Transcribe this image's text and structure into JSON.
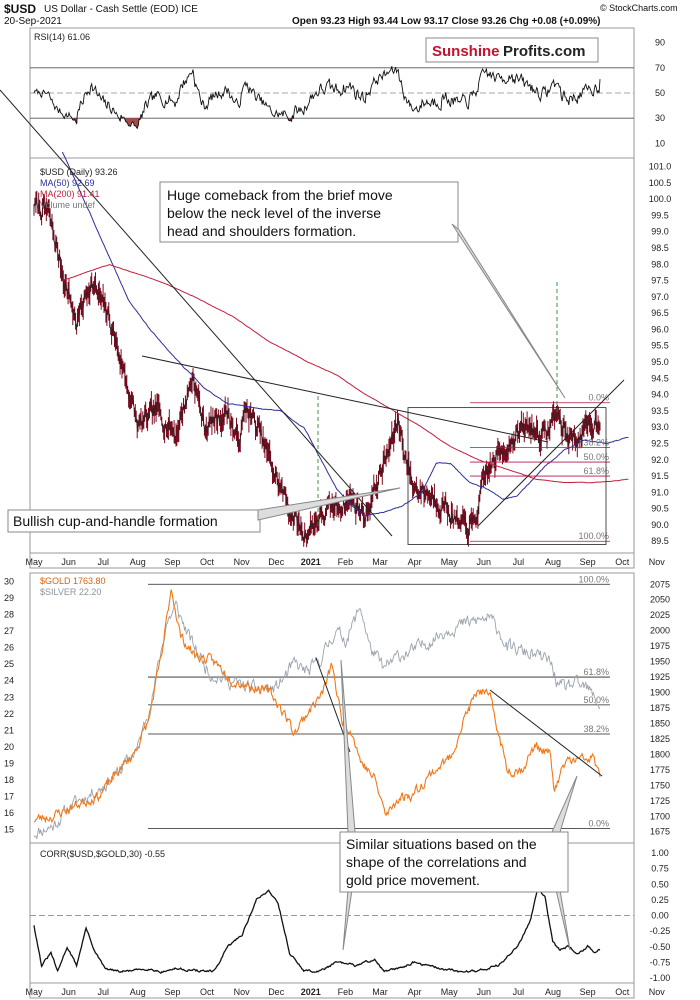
{
  "header": {
    "symbol": "$USD",
    "name": "US Dollar - Cash Settle (EOD) ICE",
    "date": "20-Sep-2021",
    "ohlc": "Open 93.23  High 93.44  Low 93.17  Close 93.26  Chg +0.08 (+0.09%)",
    "source": "© StockCharts.com",
    "brand_a": "Sunshine",
    "brand_b": "Profits.com"
  },
  "colors": {
    "usd": "#7a0c20",
    "ma50": "#2b2f9a",
    "ma200": "#c21d3c",
    "gold": "#f07818",
    "silver": "#9aa3ad",
    "fib": "#b0154a",
    "rsi_fill": "#a64b4b",
    "brand_red": "#c8102e"
  },
  "chart_data": [
    {
      "type": "line",
      "title": "RSI(14) 61.06",
      "ylim": [
        0,
        100
      ],
      "yticks": [
        "90",
        "70",
        "50",
        "30",
        "10"
      ],
      "levels": [
        70,
        50,
        30
      ],
      "last_value": 61.06
    },
    {
      "type": "line",
      "title": "$USD (Daily) 93.26",
      "legend": [
        "$USD (Daily) 93.26",
        "MA(50) 92.69",
        "MA(200) 91.41",
        "Volume undef"
      ],
      "ylim": [
        89.2,
        101.2
      ],
      "yticks": [
        "101.0",
        "100.5",
        "100.0",
        "99.5",
        "99.0",
        "98.5",
        "98.0",
        "97.5",
        "97.0",
        "96.5",
        "96.0",
        "95.5",
        "95.0",
        "94.5",
        "94.0",
        "93.5",
        "93.0",
        "92.5",
        "92.0",
        "91.5",
        "91.0",
        "90.5",
        "90.0",
        "89.5"
      ],
      "anchors": [
        [
          0,
          99.8
        ],
        [
          15,
          99.6
        ],
        [
          28,
          98.0
        ],
        [
          45,
          96.2
        ],
        [
          60,
          97.5
        ],
        [
          80,
          96.3
        ],
        [
          95,
          94.7
        ],
        [
          110,
          93.0
        ],
        [
          130,
          93.5
        ],
        [
          150,
          92.8
        ],
        [
          168,
          94.6
        ],
        [
          180,
          93.0
        ],
        [
          205,
          93.5
        ],
        [
          215,
          92.5
        ],
        [
          225,
          93.6
        ],
        [
          240,
          92.7
        ],
        [
          255,
          91.5
        ],
        [
          270,
          90.5
        ],
        [
          285,
          89.7
        ],
        [
          300,
          90.2
        ],
        [
          315,
          90.5
        ],
        [
          335,
          90.8
        ],
        [
          350,
          90.3
        ],
        [
          375,
          92.3
        ],
        [
          385,
          93.2
        ],
        [
          392,
          92.2
        ],
        [
          400,
          91.2
        ],
        [
          415,
          91.0
        ],
        [
          435,
          90.6
        ],
        [
          450,
          89.9
        ],
        [
          465,
          90.0
        ],
        [
          478,
          91.6
        ],
        [
          495,
          92.3
        ],
        [
          510,
          92.8
        ],
        [
          525,
          93.0
        ],
        [
          540,
          92.7
        ],
        [
          552,
          93.5
        ],
        [
          558,
          93.0
        ],
        [
          565,
          92.7
        ],
        [
          578,
          92.7
        ],
        [
          590,
          93.1
        ],
        [
          598,
          93.3
        ]
      ],
      "ma50": [
        [
          30,
          99.5
        ],
        [
          50,
          98.2
        ],
        [
          70,
          96.9
        ],
        [
          90,
          96.1
        ],
        [
          110,
          95.4
        ],
        [
          130,
          94.8
        ],
        [
          150,
          94.2
        ],
        [
          175,
          93.7
        ],
        [
          200,
          93.6
        ],
        [
          230,
          93.5
        ],
        [
          255,
          93.0
        ],
        [
          275,
          91.9
        ],
        [
          290,
          91.1
        ],
        [
          305,
          90.6
        ],
        [
          320,
          90.3
        ],
        [
          340,
          90.4
        ],
        [
          360,
          90.6
        ],
        [
          380,
          91.0
        ],
        [
          395,
          91.9
        ],
        [
          410,
          91.9
        ],
        [
          430,
          91.3
        ],
        [
          450,
          91.1
        ],
        [
          465,
          90.8
        ],
        [
          480,
          90.9
        ],
        [
          495,
          91.3
        ],
        [
          510,
          91.8
        ],
        [
          530,
          92.3
        ],
        [
          550,
          92.6
        ],
        [
          575,
          92.5
        ],
        [
          598,
          92.7
        ]
      ],
      "ma200": [
        [
          30,
          97.8
        ],
        [
          50,
          98.0
        ],
        [
          80,
          97.7
        ],
        [
          110,
          97.4
        ],
        [
          140,
          97.0
        ],
        [
          180,
          96.4
        ],
        [
          220,
          95.6
        ],
        [
          260,
          95.0
        ],
        [
          290,
          94.6
        ],
        [
          320,
          94.0
        ],
        [
          350,
          93.5
        ],
        [
          380,
          93.0
        ],
        [
          410,
          92.4
        ],
        [
          440,
          92.0
        ],
        [
          470,
          91.7
        ],
        [
          500,
          91.4
        ],
        [
          530,
          91.3
        ],
        [
          560,
          91.3
        ],
        [
          598,
          91.4
        ]
      ],
      "fib_levels": [
        {
          "label": "0.0%",
          "value": 93.75
        },
        {
          "label": "38.2%",
          "value": 92.38
        },
        {
          "label": "50.0%",
          "value": 91.93
        },
        {
          "label": "61.8%",
          "value": 91.5
        },
        {
          "label": "100.0%",
          "value": 89.5
        }
      ]
    },
    {
      "type": "line",
      "title": "$GOLD 1763.80",
      "legend": [
        "$GOLD 1763.80",
        "$SILVER 22.20"
      ],
      "ylim_gold": [
        1660,
        2090
      ],
      "ylim_silver": [
        14.3,
        30.4
      ],
      "yticks_left": [
        "30",
        "29",
        "28",
        "27",
        "26",
        "25",
        "24",
        "23",
        "22",
        "21",
        "20",
        "19",
        "18",
        "17",
        "16",
        "15"
      ],
      "yticks_right": [
        "2075",
        "2050",
        "2025",
        "2000",
        "1975",
        "1950",
        "1925",
        "1900",
        "1875",
        "1850",
        "1825",
        "1800",
        "1775",
        "1750",
        "1725",
        "1700",
        "1675"
      ],
      "gold_anchors": [
        [
          0,
          1695
        ],
        [
          20,
          1700
        ],
        [
          40,
          1715
        ],
        [
          70,
          1735
        ],
        [
          90,
          1775
        ],
        [
          105,
          1800
        ],
        [
          120,
          1850
        ],
        [
          135,
          1960
        ],
        [
          145,
          2070
        ],
        [
          155,
          1990
        ],
        [
          170,
          1960
        ],
        [
          190,
          1950
        ],
        [
          210,
          1920
        ],
        [
          230,
          1910
        ],
        [
          250,
          1900
        ],
        [
          265,
          1865
        ],
        [
          275,
          1835
        ],
        [
          290,
          1870
        ],
        [
          305,
          1900
        ],
        [
          315,
          1945
        ],
        [
          325,
          1855
        ],
        [
          335,
          1840
        ],
        [
          345,
          1790
        ],
        [
          360,
          1760
        ],
        [
          372,
          1700
        ],
        [
          385,
          1730
        ],
        [
          400,
          1735
        ],
        [
          420,
          1770
        ],
        [
          440,
          1795
        ],
        [
          455,
          1860
        ],
        [
          470,
          1905
        ],
        [
          482,
          1890
        ],
        [
          490,
          1840
        ],
        [
          500,
          1775
        ],
        [
          515,
          1775
        ],
        [
          530,
          1815
        ],
        [
          545,
          1800
        ],
        [
          550,
          1740
        ],
        [
          562,
          1790
        ],
        [
          575,
          1790
        ],
        [
          590,
          1795
        ],
        [
          598,
          1765
        ]
      ],
      "silver_anchors": [
        [
          0,
          14.8
        ],
        [
          20,
          15.2
        ],
        [
          40,
          16.5
        ],
        [
          70,
          17.5
        ],
        [
          90,
          18.5
        ],
        [
          110,
          20.0
        ],
        [
          125,
          23.0
        ],
        [
          140,
          27.5
        ],
        [
          150,
          28.5
        ],
        [
          165,
          26.5
        ],
        [
          185,
          24.5
        ],
        [
          205,
          24.0
        ],
        [
          230,
          23.5
        ],
        [
          255,
          23.5
        ],
        [
          275,
          25.0
        ],
        [
          290,
          24.5
        ],
        [
          305,
          25.5
        ],
        [
          318,
          27.0
        ],
        [
          330,
          26.5
        ],
        [
          345,
          28.5
        ],
        [
          355,
          26.0
        ],
        [
          370,
          24.7
        ],
        [
          385,
          25.5
        ],
        [
          400,
          25.8
        ],
        [
          420,
          26.5
        ],
        [
          440,
          27.2
        ],
        [
          460,
          27.5
        ],
        [
          480,
          27.8
        ],
        [
          490,
          27.2
        ],
        [
          500,
          26.0
        ],
        [
          515,
          25.8
        ],
        [
          530,
          25.5
        ],
        [
          545,
          25.2
        ],
        [
          555,
          23.5
        ],
        [
          570,
          23.8
        ],
        [
          585,
          23.5
        ],
        [
          598,
          22.5
        ]
      ],
      "fib_levels": [
        {
          "label": "100.0%",
          "value": 2075
        },
        {
          "label": "61.8%",
          "value": 1925
        },
        {
          "label": "50.0%",
          "value": 1880
        },
        {
          "label": "38.2%",
          "value": 1833
        },
        {
          "label": "0.0%",
          "value": 1680
        }
      ]
    },
    {
      "type": "line",
      "title": "CORR($USD,$GOLD,30) -0.55",
      "ylim": [
        -1.0,
        1.0
      ],
      "yticks": [
        "1.00",
        "0.75",
        "0.50",
        "0.25",
        "0.00",
        "-0.25",
        "-0.50",
        "-0.75",
        "-1.00"
      ],
      "last_value": -0.55,
      "anchors": [
        [
          0,
          -0.15
        ],
        [
          8,
          -0.8
        ],
        [
          18,
          -0.6
        ],
        [
          25,
          -0.9
        ],
        [
          35,
          -0.5
        ],
        [
          45,
          -0.8
        ],
        [
          55,
          -0.2
        ],
        [
          65,
          -0.6
        ],
        [
          75,
          -0.85
        ],
        [
          90,
          -0.9
        ],
        [
          105,
          -0.88
        ],
        [
          120,
          -0.85
        ],
        [
          135,
          -0.9
        ],
        [
          150,
          -0.85
        ],
        [
          170,
          -0.88
        ],
        [
          190,
          -0.9
        ],
        [
          205,
          -0.5
        ],
        [
          220,
          -0.3
        ],
        [
          235,
          0.25
        ],
        [
          248,
          0.4
        ],
        [
          258,
          0.2
        ],
        [
          270,
          -0.6
        ],
        [
          285,
          -0.88
        ],
        [
          300,
          -0.9
        ],
        [
          320,
          -0.75
        ],
        [
          340,
          -0.8
        ],
        [
          360,
          -0.7
        ],
        [
          370,
          -0.9
        ],
        [
          385,
          -0.85
        ],
        [
          400,
          -0.75
        ],
        [
          415,
          -0.8
        ],
        [
          430,
          -0.85
        ],
        [
          450,
          -0.9
        ],
        [
          470,
          -0.88
        ],
        [
          490,
          -0.8
        ],
        [
          505,
          -0.6
        ],
        [
          515,
          -0.4
        ],
        [
          525,
          -0.05
        ],
        [
          532,
          0.45
        ],
        [
          540,
          0.3
        ],
        [
          548,
          -0.4
        ],
        [
          555,
          -0.55
        ],
        [
          565,
          -0.5
        ],
        [
          575,
          -0.6
        ],
        [
          585,
          -0.5
        ],
        [
          592,
          -0.58
        ],
        [
          598,
          -0.55
        ]
      ]
    }
  ],
  "x_axis": {
    "months": [
      "May",
      "Jun",
      "Jul",
      "Aug",
      "Sep",
      "Oct",
      "Nov",
      "Dec",
      "2021",
      "Feb",
      "Mar",
      "Apr",
      "May",
      "Jun",
      "Jul",
      "Aug",
      "Sep",
      "Oct",
      "Nov"
    ]
  },
  "annotations": {
    "huge": [
      "Huge comeback from the brief move",
      "below the neck level of the inverse",
      "head and shoulders formation."
    ],
    "cup": "Bullish cup-and-handle formation",
    "similar": [
      "Similar situations based on the",
      "shape of the correlations and",
      "gold price movement."
    ]
  }
}
